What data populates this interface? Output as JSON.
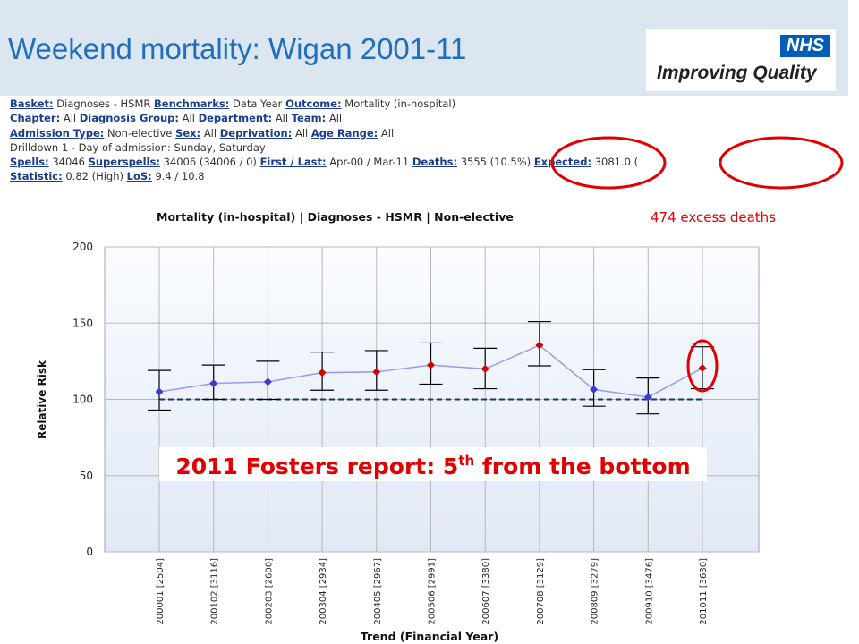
{
  "slide": {
    "title": "Weekend mortality: Wigan 2001-11",
    "logo_badge": "NHS",
    "logo_text": "Improving Quality"
  },
  "info_lines": [
    [
      {
        "label": "Basket:",
        "value": "Diagnoses - HSMR"
      },
      {
        "label": "Benchmarks:",
        "value": "Data Year"
      },
      {
        "label": "Outcome:",
        "value": "Mortality (in-hospital)"
      }
    ],
    [
      {
        "label": "Chapter:",
        "value": "All"
      },
      {
        "label": "Diagnosis Group:",
        "value": "All"
      },
      {
        "label": "Department:",
        "value": "All"
      },
      {
        "label": "Team:",
        "value": "All"
      }
    ],
    [
      {
        "label": "Admission Type:",
        "value": "Non-elective"
      },
      {
        "label": "Sex:",
        "value": "All"
      },
      {
        "label": "Deprivation:",
        "value": "All"
      },
      {
        "label": "Age Range:",
        "value": "All"
      }
    ],
    [
      {
        "label": "",
        "value": "Drilldown 1 - Day of admission: Sunday, Saturday"
      }
    ],
    [
      {
        "label": "Spells:",
        "value": "34046"
      },
      {
        "label": "Superspells:",
        "value": "34006 (34006 / 0)"
      },
      {
        "label": "First / Last:",
        "value": "Apr-00 / Mar-11"
      },
      {
        "label": "Deaths:",
        "value": "3555 (10.5%)"
      },
      {
        "label": "Expected:",
        "value": "3081.0 ("
      }
    ],
    [
      {
        "label": "Statistic:",
        "value": "0.82 (High)"
      },
      {
        "label": "LoS:",
        "value": "9.4 / 10.8"
      }
    ]
  ],
  "annotations": {
    "excess_deaths": "474 excess deaths",
    "fosters_prefix": "2011 Fosters report: 5",
    "fosters_sup": "th",
    "fosters_suffix": " from the bottom",
    "colors": {
      "annotation": "#e00000",
      "circle": "#e00000"
    }
  },
  "chart_data": {
    "type": "line",
    "title": "Mortality (in-hospital) |  Diagnoses - HSMR | Non-elective",
    "xlabel": "Trend (Financial Year)",
    "ylabel": "Relative Risk",
    "ylim": [
      0,
      200
    ],
    "yticks": [
      0,
      50,
      100,
      150,
      200
    ],
    "grid": true,
    "reference_line": 100,
    "categories": [
      "200001 [2504]",
      "200102 [3116]",
      "200203 [2600]",
      "200304 [2934]",
      "200405 [2967]",
      "200506 [2991]",
      "200607 [3380]",
      "200708 [3129]",
      "200809 [3279]",
      "200910 [3476]",
      "201011 [3630]"
    ],
    "series": [
      {
        "values": [
          105,
          110.5,
          111.5,
          117.5,
          118,
          122.5,
          120,
          135.5,
          106.5,
          101.5,
          120.5
        ],
        "lower": [
          93,
          100,
          100,
          106,
          106,
          110,
          107,
          122,
          95.5,
          90.5,
          107
        ],
        "upper": [
          119,
          122.5,
          125,
          131,
          132,
          137,
          133.5,
          151,
          119.5,
          114,
          134.5
        ],
        "marker_colors": [
          "#3b3bcf",
          "#3b3bcf",
          "#3b3bcf",
          "#d40000",
          "#d40000",
          "#d40000",
          "#d40000",
          "#d40000",
          "#3b3bcf",
          "#3b3bcf",
          "#d40000"
        ],
        "line_color": "#9999ee"
      }
    ],
    "colors": {
      "plot_background_top": "#fafcff",
      "plot_background_bottom": "#e1e9f6",
      "grid": "#b8b8b8",
      "reference": "#1f3a5f",
      "whisker": "#000000"
    }
  }
}
